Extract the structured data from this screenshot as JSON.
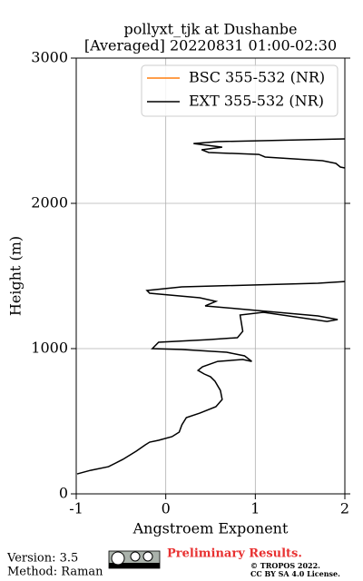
{
  "chart_data": {
    "type": "line",
    "title": "pollyxt_tjk at Dushanbe",
    "subtitle": "[Averaged] 20220831 01:00-02:30",
    "xlabel": "Angstroem Exponent",
    "ylabel": "Height (m)",
    "xlim": [
      -1,
      2
    ],
    "xticks": [
      -1,
      0,
      1,
      2
    ],
    "ylim": [
      0,
      3000
    ],
    "yticks": [
      0,
      1000,
      2000,
      3000
    ],
    "grid": true,
    "legend": "upper right",
    "series": [
      {
        "name": "BSC 355-532 (NR)",
        "color": "#ff7f0e",
        "x": [],
        "y": []
      },
      {
        "name": "EXT 355-532 (NR)",
        "color": "#000000",
        "x": [
          -0.99,
          -0.84,
          -0.64,
          -0.48,
          -0.33,
          -0.23,
          -0.18,
          -0.08,
          0.07,
          0.15,
          0.18,
          0.23,
          0.38,
          0.56,
          0.63,
          0.61,
          0.55,
          0.5,
          0.43,
          0.36,
          0.41,
          0.58,
          0.86,
          0.96,
          0.88,
          0.68,
          0.18,
          -0.15,
          -0.08,
          0.48,
          0.8,
          0.86,
          0.83,
          1.09,
          1.8,
          1.92,
          1.7,
          0.79,
          0.44,
          0.56,
          0.38,
          -0.18,
          -0.21,
          0.18,
          1.7,
          2.0,
          null,
          2.0,
          1.95,
          1.9,
          1.75,
          1.11,
          1.04,
          0.48,
          0.4,
          0.63,
          0.31,
          0.58,
          2.0
        ],
        "y": [
          137,
          162,
          187,
          237,
          294,
          337,
          356,
          369,
          394,
          425,
          475,
          525,
          556,
          600,
          650,
          712,
          775,
          806,
          825,
          850,
          875,
          912,
          925,
          912,
          950,
          975,
          994,
          1000,
          1044,
          1062,
          1075,
          1119,
          1231,
          1250,
          1187,
          1200,
          1225,
          1275,
          1294,
          1325,
          1350,
          1381,
          1400,
          1425,
          1450,
          1462,
          null,
          2244,
          2250,
          2275,
          2294,
          2319,
          2337,
          2350,
          2369,
          2387,
          2412,
          2425,
          2444
        ]
      }
    ]
  },
  "footer": {
    "version": "Version: 3.5",
    "method": "Method: Raman",
    "status": "Preliminary Results.",
    "copyright": "© TROPOS 2022.",
    "license": "CC BY SA 4.0 License."
  }
}
